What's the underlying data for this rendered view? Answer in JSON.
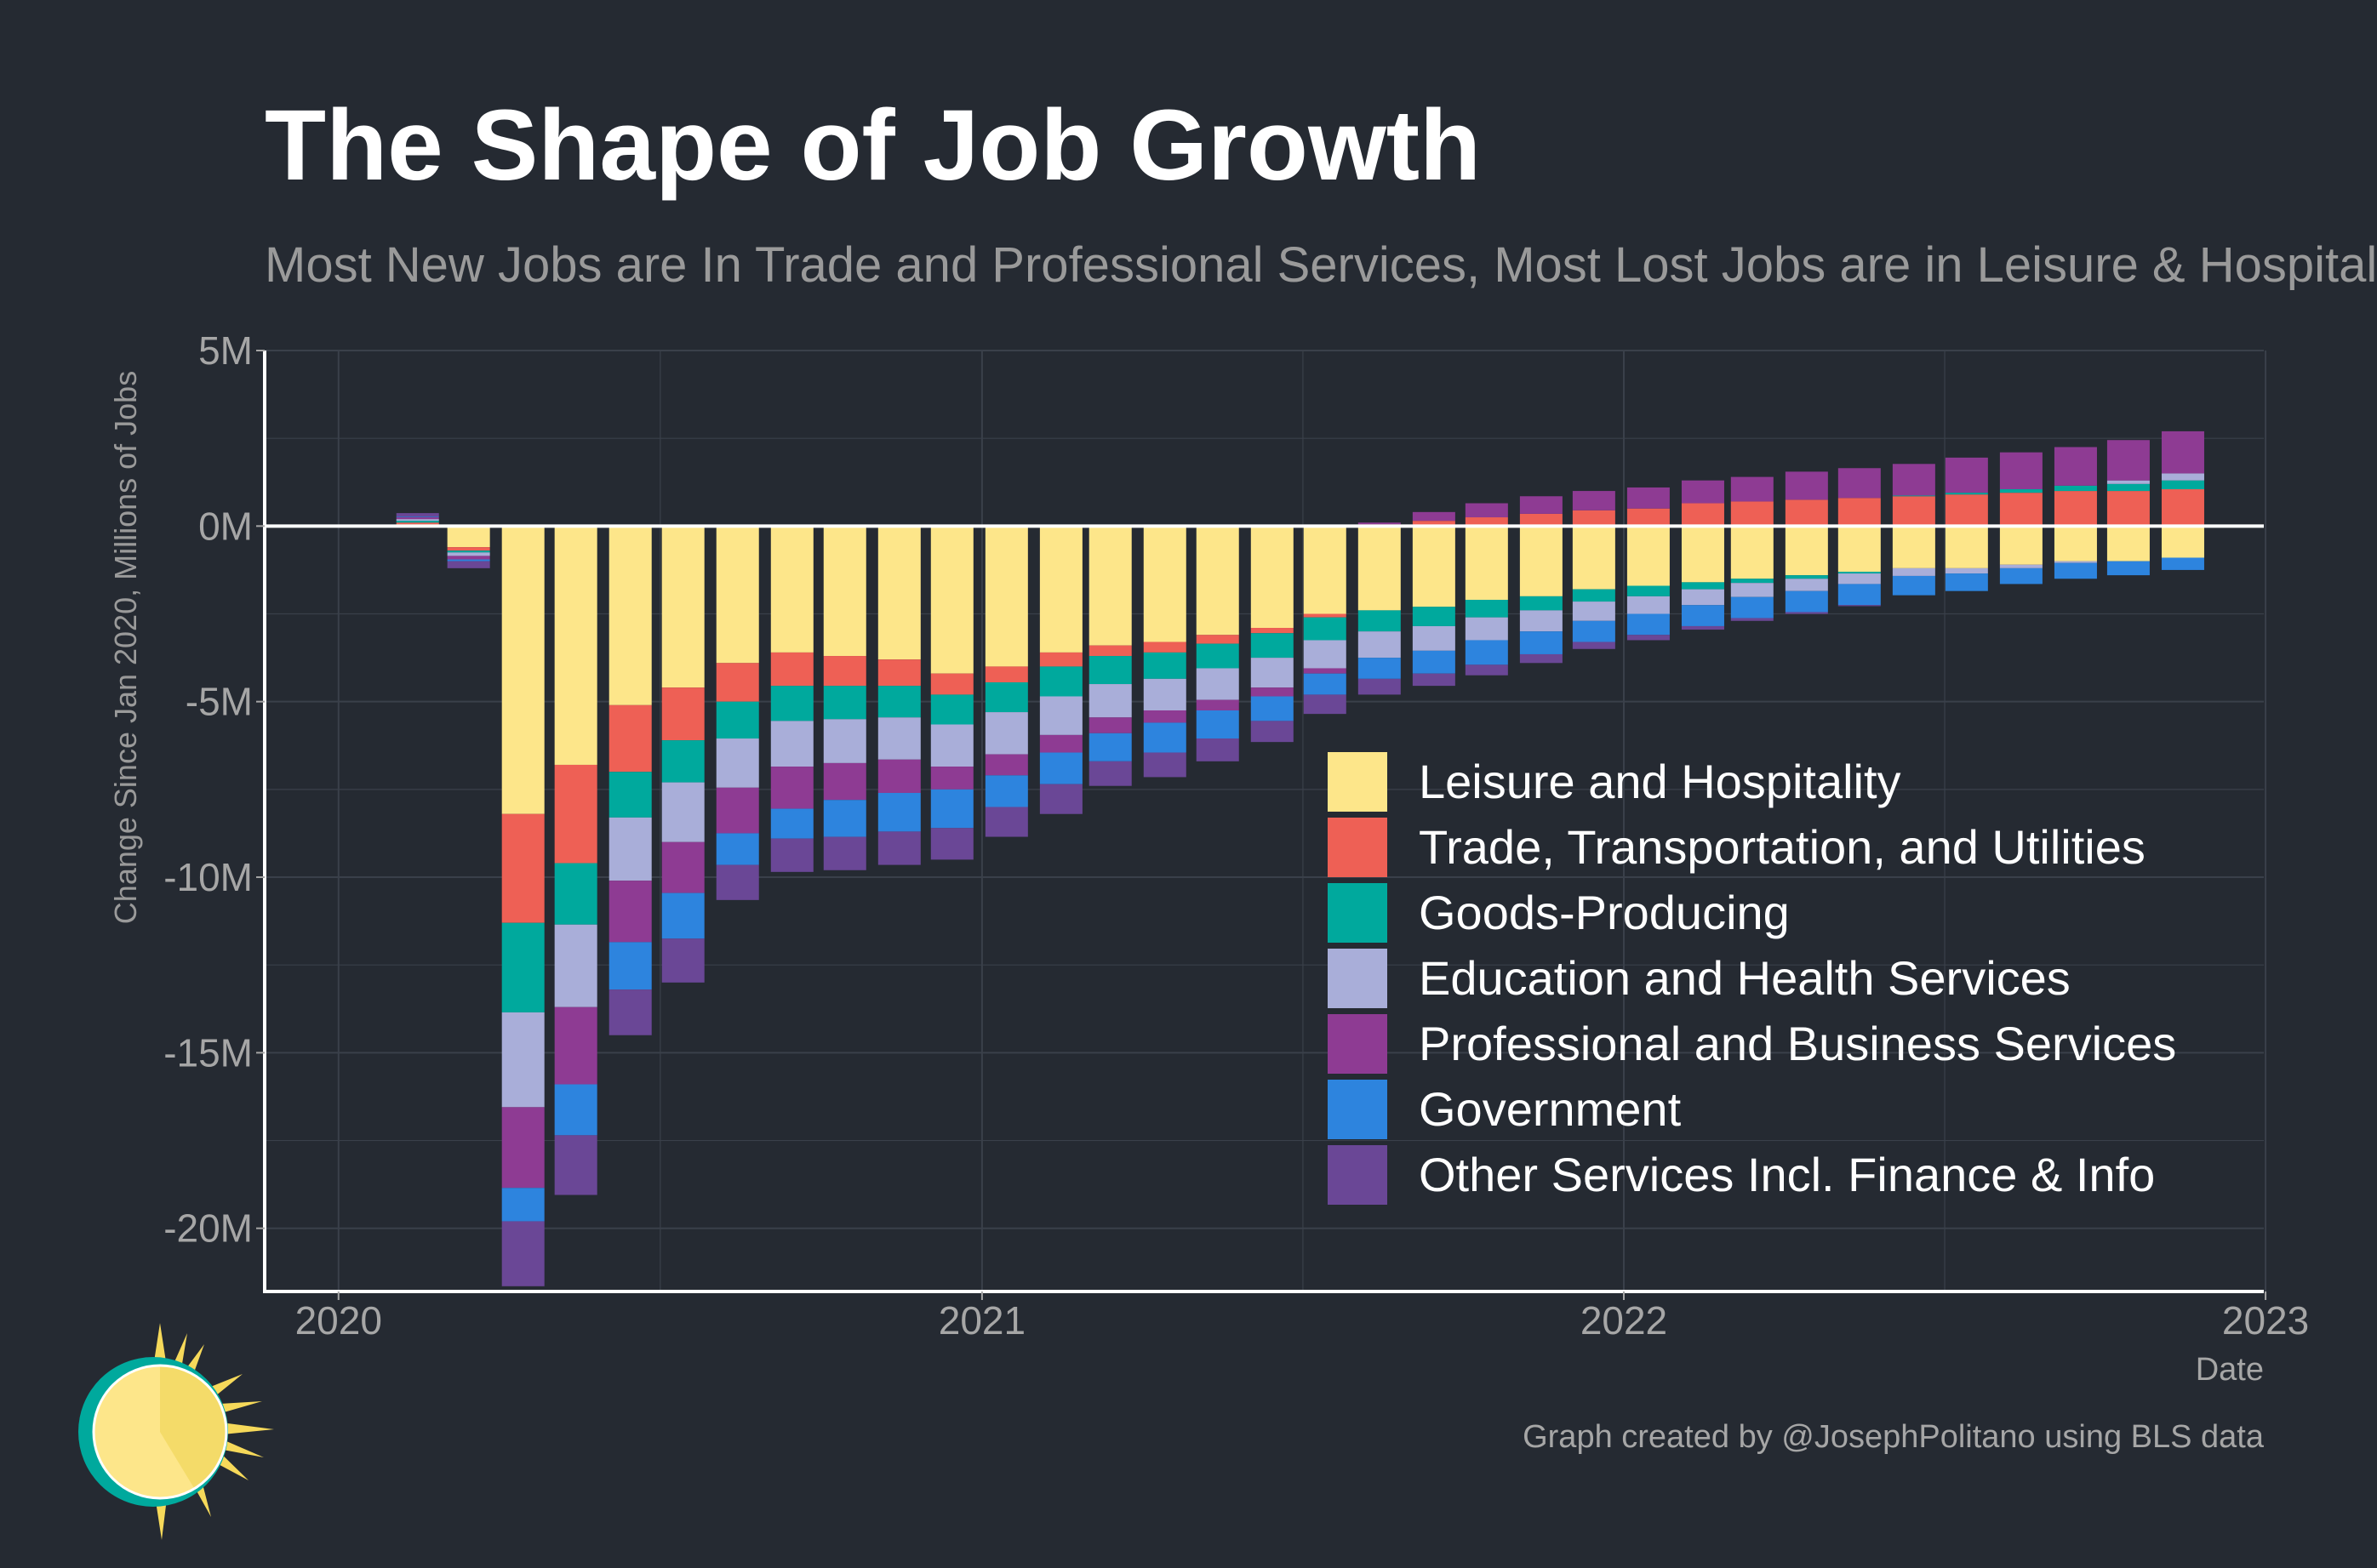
{
  "title": "The Shape of Job Growth",
  "subtitle": "Most New Jobs are In Trade and Professional Services, Most Lost Jobs are in Leisure & Hospitality",
  "caption": "Graph created by @JosephPolitano using BLS data",
  "colors": {
    "background": "#252a32",
    "grid": "#3a404a",
    "axis": "#ffffff",
    "zero_line": "#ffffff"
  },
  "chart_data": {
    "type": "bar",
    "stacked": true,
    "xlabel": "Date",
    "ylabel": "Change Since Jan 2020, Millions of Jobs",
    "xlim": [
      "2019-11-20",
      "2022-12-31"
    ],
    "ylim": [
      -21.8,
      5
    ],
    "y_ticks": [
      5,
      0,
      -5,
      -10,
      -15,
      -20
    ],
    "y_tick_labels": [
      "5M",
      "0M",
      "-5M",
      "-10M",
      "-15M",
      "-20M"
    ],
    "x_ticks": [
      "2020-01-01",
      "2021-01-01",
      "2022-01-01",
      "2023-01-01"
    ],
    "x_tick_labels": [
      "2020",
      "2021",
      "2022",
      "2023"
    ],
    "grid": true,
    "legend_position": "inside-bottom-right",
    "x": [
      "2020-02",
      "2020-03",
      "2020-04",
      "2020-05",
      "2020-06",
      "2020-07",
      "2020-08",
      "2020-09",
      "2020-10",
      "2020-11",
      "2020-12",
      "2021-01",
      "2021-02",
      "2021-03",
      "2021-04",
      "2021-05",
      "2021-06",
      "2021-07",
      "2021-08",
      "2021-09",
      "2021-10",
      "2021-11",
      "2021-12",
      "2022-01",
      "2022-02",
      "2022-03",
      "2022-04",
      "2022-05",
      "2022-06",
      "2022-07",
      "2022-08",
      "2022-09",
      "2022-10",
      "2022-11"
    ],
    "series": [
      {
        "name": "Leisure and Hospitality",
        "color": "#fde68a",
        "values": [
          0.05,
          -0.6,
          -8.2,
          -6.8,
          -5.1,
          -4.6,
          -3.9,
          -3.6,
          -3.7,
          -3.8,
          -4.2,
          -4.0,
          -3.6,
          -3.4,
          -3.3,
          -3.1,
          -2.9,
          -2.5,
          -2.4,
          -2.3,
          -2.1,
          -2.0,
          -1.8,
          -1.7,
          -1.6,
          -1.5,
          -1.4,
          -1.3,
          -1.2,
          -1.2,
          -1.1,
          -1.0,
          -1.0,
          -0.9
        ]
      },
      {
        "name": "Trade, Transportation, and Utilities",
        "color": "#ee6055",
        "values": [
          0.05,
          -0.1,
          -3.1,
          -2.8,
          -1.9,
          -1.5,
          -1.1,
          -0.95,
          -0.85,
          -0.75,
          -0.6,
          -0.45,
          -0.4,
          -0.3,
          -0.3,
          -0.25,
          -0.15,
          -0.1,
          0.05,
          0.15,
          0.25,
          0.35,
          0.45,
          0.5,
          0.65,
          0.7,
          0.75,
          0.8,
          0.85,
          0.9,
          0.95,
          1.0,
          1.0,
          1.05
        ]
      },
      {
        "name": "Goods-Producing",
        "color": "#00a99d",
        "values": [
          0.05,
          -0.05,
          -2.55,
          -1.75,
          -1.3,
          -1.2,
          -1.05,
          -1.0,
          -0.95,
          -0.9,
          -0.85,
          -0.85,
          -0.85,
          -0.8,
          -0.75,
          -0.7,
          -0.7,
          -0.65,
          -0.6,
          -0.55,
          -0.5,
          -0.4,
          -0.35,
          -0.3,
          -0.2,
          -0.12,
          -0.1,
          -0.05,
          0.02,
          0.05,
          0.1,
          0.15,
          0.2,
          0.25
        ]
      },
      {
        "name": "Education and Health Services",
        "color": "#a9aed9",
        "values": [
          0.05,
          -0.1,
          -2.7,
          -2.35,
          -1.8,
          -1.7,
          -1.4,
          -1.3,
          -1.25,
          -1.2,
          -1.2,
          -1.2,
          -1.1,
          -0.95,
          -0.9,
          -0.9,
          -0.85,
          -0.8,
          -0.75,
          -0.7,
          -0.65,
          -0.6,
          -0.55,
          -0.5,
          -0.45,
          -0.4,
          -0.35,
          -0.3,
          -0.22,
          -0.15,
          -0.1,
          -0.05,
          0.1,
          0.2
        ]
      },
      {
        "name": "Professional and Business Services",
        "color": "#8e3b93",
        "values": [
          0.05,
          -0.1,
          -2.3,
          -2.2,
          -1.75,
          -1.45,
          -1.3,
          -1.2,
          -1.05,
          -0.95,
          -0.65,
          -0.6,
          -0.5,
          -0.45,
          -0.35,
          -0.3,
          -0.25,
          -0.15,
          0.05,
          0.25,
          0.4,
          0.5,
          0.55,
          0.6,
          0.65,
          0.7,
          0.8,
          0.85,
          0.9,
          1.0,
          1.05,
          1.1,
          1.15,
          1.2
        ]
      },
      {
        "name": "Government",
        "color": "#2d84de",
        "values": [
          0.02,
          -0.05,
          -0.95,
          -1.45,
          -1.35,
          -1.3,
          -0.9,
          -0.85,
          -1.05,
          -1.1,
          -1.1,
          -0.9,
          -0.9,
          -0.8,
          -0.85,
          -0.8,
          -0.7,
          -0.6,
          -0.6,
          -0.65,
          -0.7,
          -0.65,
          -0.6,
          -0.6,
          -0.6,
          -0.6,
          -0.6,
          -0.6,
          -0.55,
          -0.5,
          -0.45,
          -0.45,
          -0.4,
          -0.35
        ]
      },
      {
        "name": "Other Services Incl. Finance & Info",
        "color": "#6a4796",
        "values": [
          0.1,
          -0.2,
          -1.85,
          -1.7,
          -1.3,
          -1.25,
          -1.0,
          -0.95,
          -0.95,
          -0.95,
          -0.9,
          -0.85,
          -0.85,
          -0.7,
          -0.7,
          -0.65,
          -0.6,
          -0.55,
          -0.45,
          -0.35,
          -0.3,
          -0.25,
          -0.2,
          -0.15,
          -0.1,
          -0.08,
          -0.05,
          -0.03,
          0.0,
          0.0,
          0.0,
          0.0,
          0.0,
          0.0
        ]
      }
    ]
  }
}
